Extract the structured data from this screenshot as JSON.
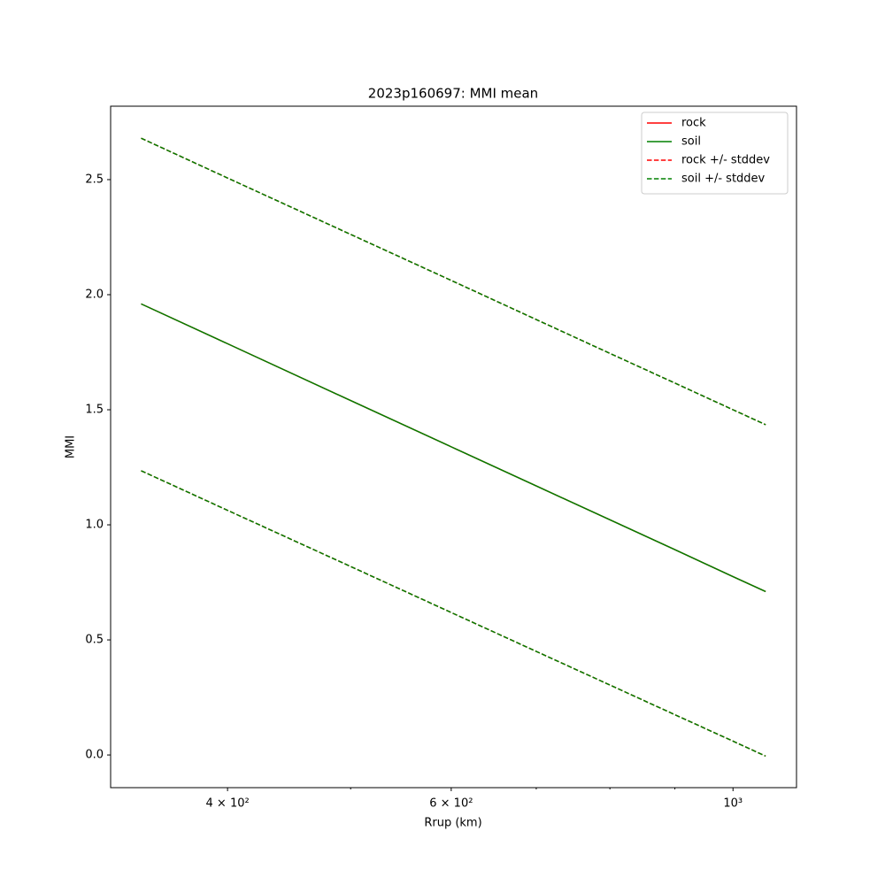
{
  "chart_data": {
    "type": "line",
    "title": "2023p160697: MMI mean",
    "x_label": "Rrup (km)",
    "y_label": "MMI",
    "x": [
      342,
      400,
      500,
      600,
      700,
      800,
      900,
      1000,
      1061
    ],
    "x_scale": "log",
    "series": [
      {
        "name": "rock",
        "color": "#ff0000",
        "style": "solid",
        "values": [
          1.96,
          1.787,
          1.54,
          1.339,
          1.169,
          1.022,
          0.892,
          0.775,
          0.71
        ]
      },
      {
        "name": "soil",
        "color": "#008000",
        "style": "solid",
        "values": [
          1.96,
          1.787,
          1.54,
          1.339,
          1.169,
          1.022,
          0.892,
          0.775,
          0.71
        ]
      },
      {
        "name": "rock +/- stddev",
        "color": "#ff0000",
        "style": "dashed",
        "upper": [
          2.68,
          2.507,
          2.262,
          2.062,
          1.892,
          1.745,
          1.616,
          1.5,
          1.435
        ],
        "lower": [
          1.235,
          1.063,
          0.819,
          0.619,
          0.45,
          0.304,
          0.175,
          0.06,
          -0.005
        ]
      },
      {
        "name": "soil +/- stddev",
        "color": "#008000",
        "style": "dashed",
        "upper": [
          2.68,
          2.507,
          2.262,
          2.062,
          1.892,
          1.745,
          1.616,
          1.5,
          1.435
        ],
        "lower": [
          1.235,
          1.063,
          0.819,
          0.619,
          0.45,
          0.304,
          0.175,
          0.06,
          -0.005
        ]
      }
    ],
    "xlim": [
      323.6,
      1122
    ],
    "xticks": [
      {
        "value": 400,
        "label": "4 × 10²"
      },
      {
        "value": 600,
        "label": "6 × 10²"
      },
      {
        "value": 1000,
        "label": "10³"
      }
    ],
    "xminorticks": [
      500,
      700,
      800,
      900
    ],
    "ylim": [
      -0.142,
      2.819
    ],
    "yticks": [
      {
        "value": 0,
        "label": "0.0"
      },
      0.5,
      {
        "value": 1,
        "label": "1.0"
      },
      1.5,
      {
        "value": 2,
        "label": "2.0"
      },
      2.5
    ],
    "legend": "upper right",
    "grid": false
  }
}
